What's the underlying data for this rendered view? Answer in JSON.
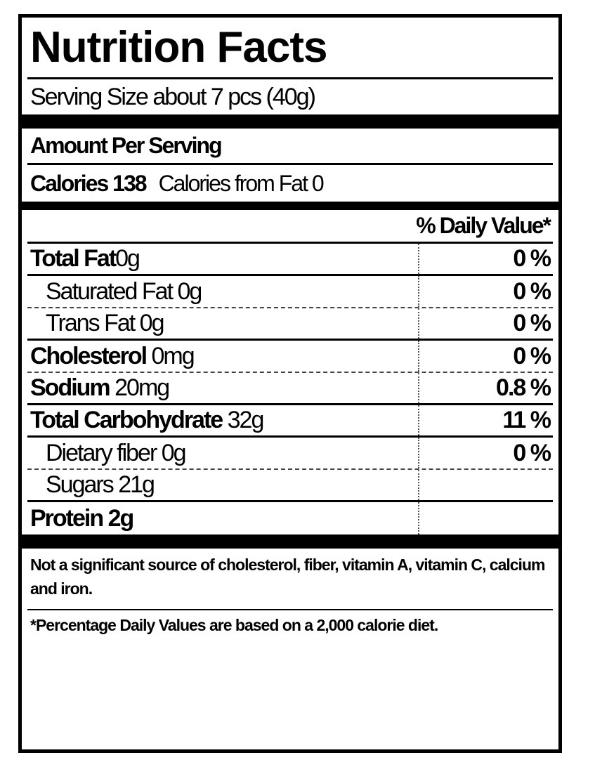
{
  "label": {
    "title": "Nutrition Facts",
    "serving_size": "Serving Size about 7 pcs (40g)",
    "amount_per_serving": "Amount Per Serving",
    "calories": "Calories 138",
    "calories_from_fat": "Calories from Fat 0",
    "daily_value_header": "% Daily Value*",
    "nutrients": [
      {
        "name": "Total Fat",
        "amount": "0g",
        "dv": "0 %"
      },
      {
        "name": "Saturated Fat",
        "amount": "0g",
        "dv": "0 %"
      },
      {
        "name": "Trans Fat",
        "amount": "0g",
        "dv": "0 %"
      },
      {
        "name": "Cholesterol",
        "amount": "0mg",
        "dv": "0 %"
      },
      {
        "name": "Sodium",
        "amount": "20mg",
        "dv": "0.8 %"
      },
      {
        "name": "Total Carbohydrate",
        "amount": "32g",
        "dv": "11 %"
      },
      {
        "name": "Dietary fiber",
        "amount": "0g",
        "dv": "0 %"
      },
      {
        "name": "Sugars",
        "amount": "21g",
        "dv": ""
      },
      {
        "name": "Protein",
        "amount": "2g",
        "dv": ""
      }
    ],
    "footnote_1": "Not a significant source of cholesterol, fiber, vitamin A, vitamin C, calcium and iron.",
    "footnote_2": "*Percentage Daily Values are based on a 2,000 calorie diet."
  }
}
